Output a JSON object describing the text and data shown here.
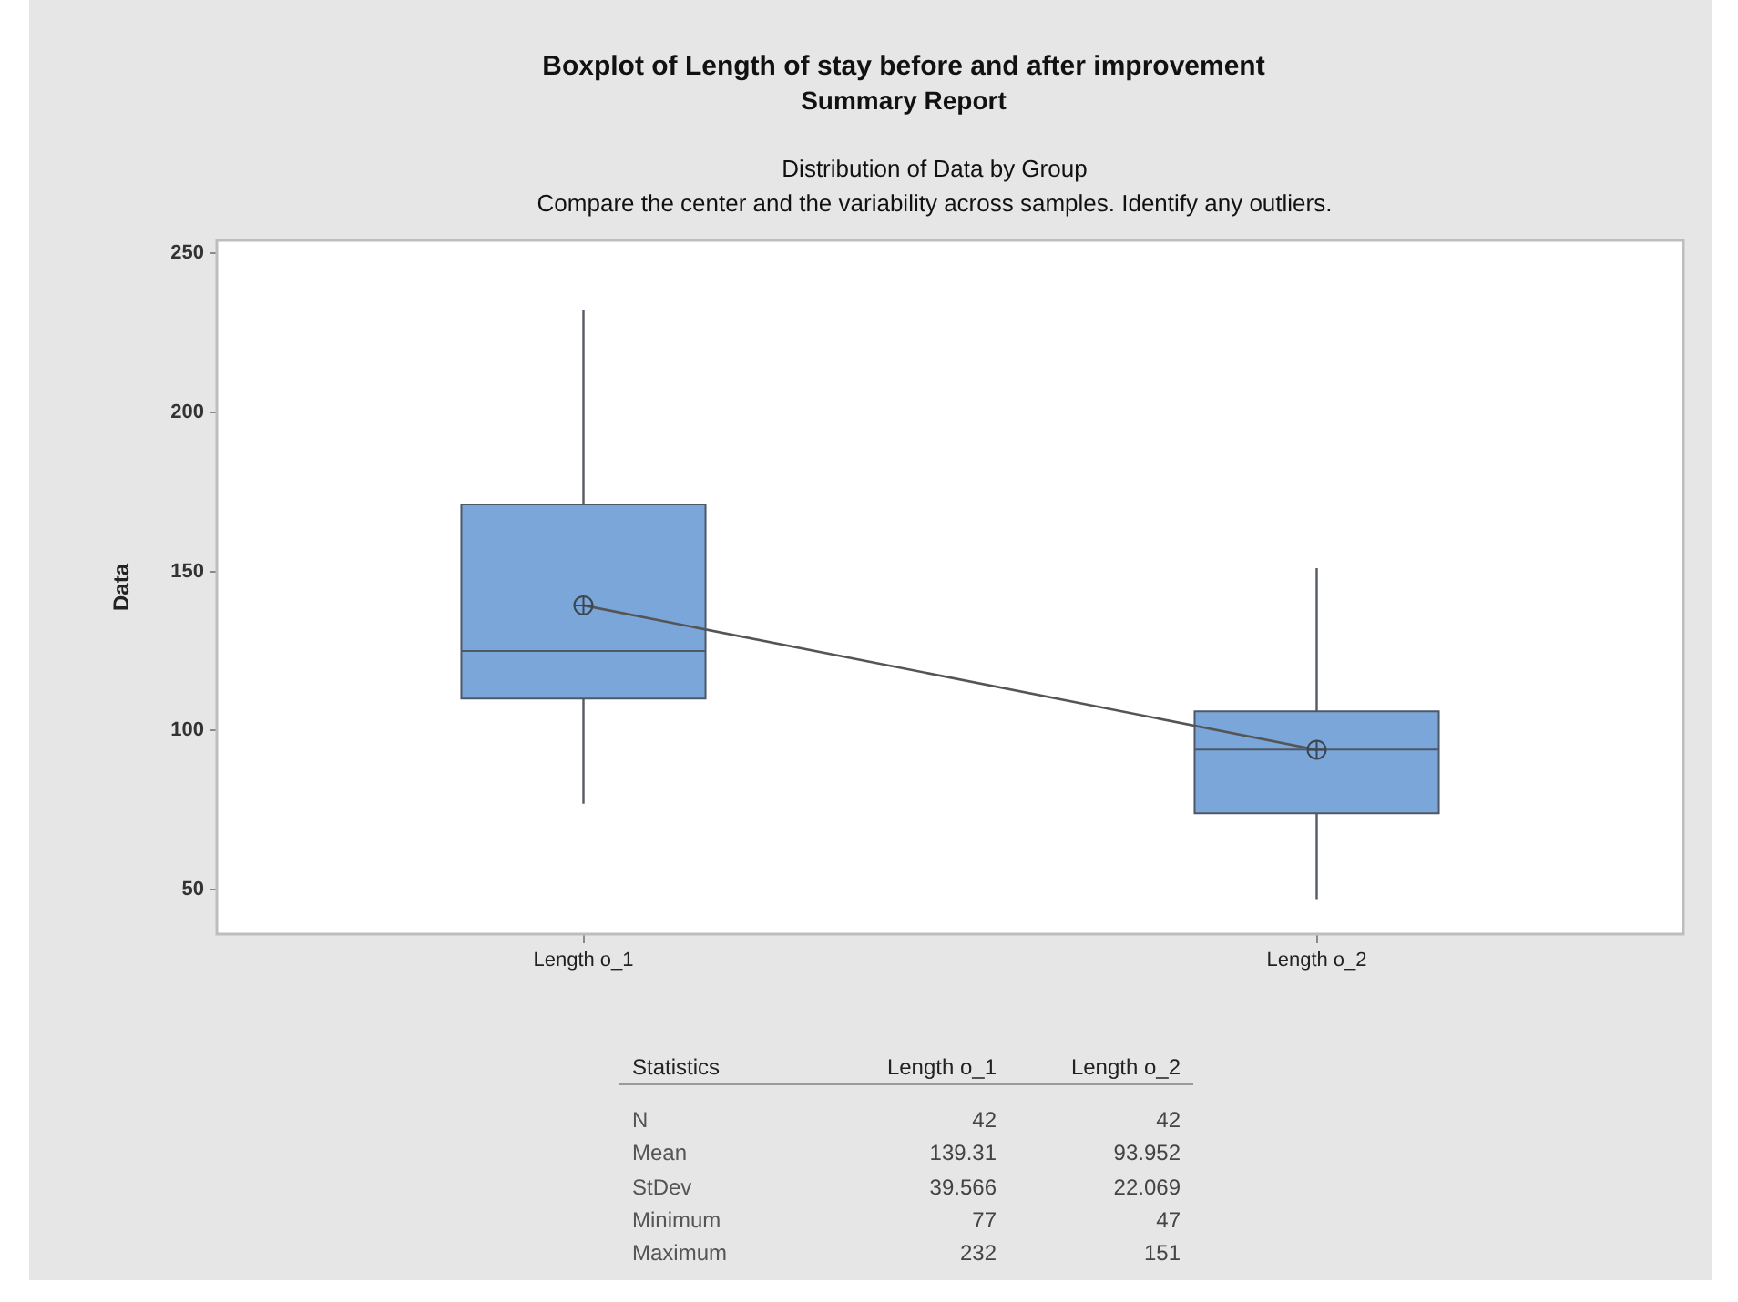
{
  "chart_data": {
    "type": "box",
    "title": "Boxplot of Length of stay before and after improvement",
    "subtitle": "Summary Report",
    "ylabel": "Data",
    "categories": [
      "Length o_1",
      "Length o_2"
    ],
    "ylim": [
      36,
      254
    ],
    "yticks": [
      50,
      100,
      150,
      200,
      250
    ],
    "series": [
      {
        "color": "#7ba6d9",
        "boxes": [
          {
            "low": 77,
            "q1": 110,
            "median": 125,
            "q3": 171,
            "high": 232,
            "mean": 139.31
          },
          {
            "low": 47,
            "q1": 74,
            "median": 94,
            "q3": 106,
            "high": 151,
            "mean": 93.952
          }
        ]
      },
      {
        "type": "line",
        "color": "#555555",
        "values": [
          139.31,
          93.952
        ]
      }
    ],
    "annotations": [
      "Distribution of Data by Group",
      "Compare the center and the variability across samples. Identify any outliers.",
      "Statistics",
      "Length o_1",
      "Length o_2",
      "N",
      "42",
      "42",
      "Mean",
      "139.31",
      "93.952",
      "StDev",
      "39.566",
      "22.069",
      "Minimum",
      "77",
      "47",
      "Maximum",
      "232",
      "151"
    ]
  }
}
